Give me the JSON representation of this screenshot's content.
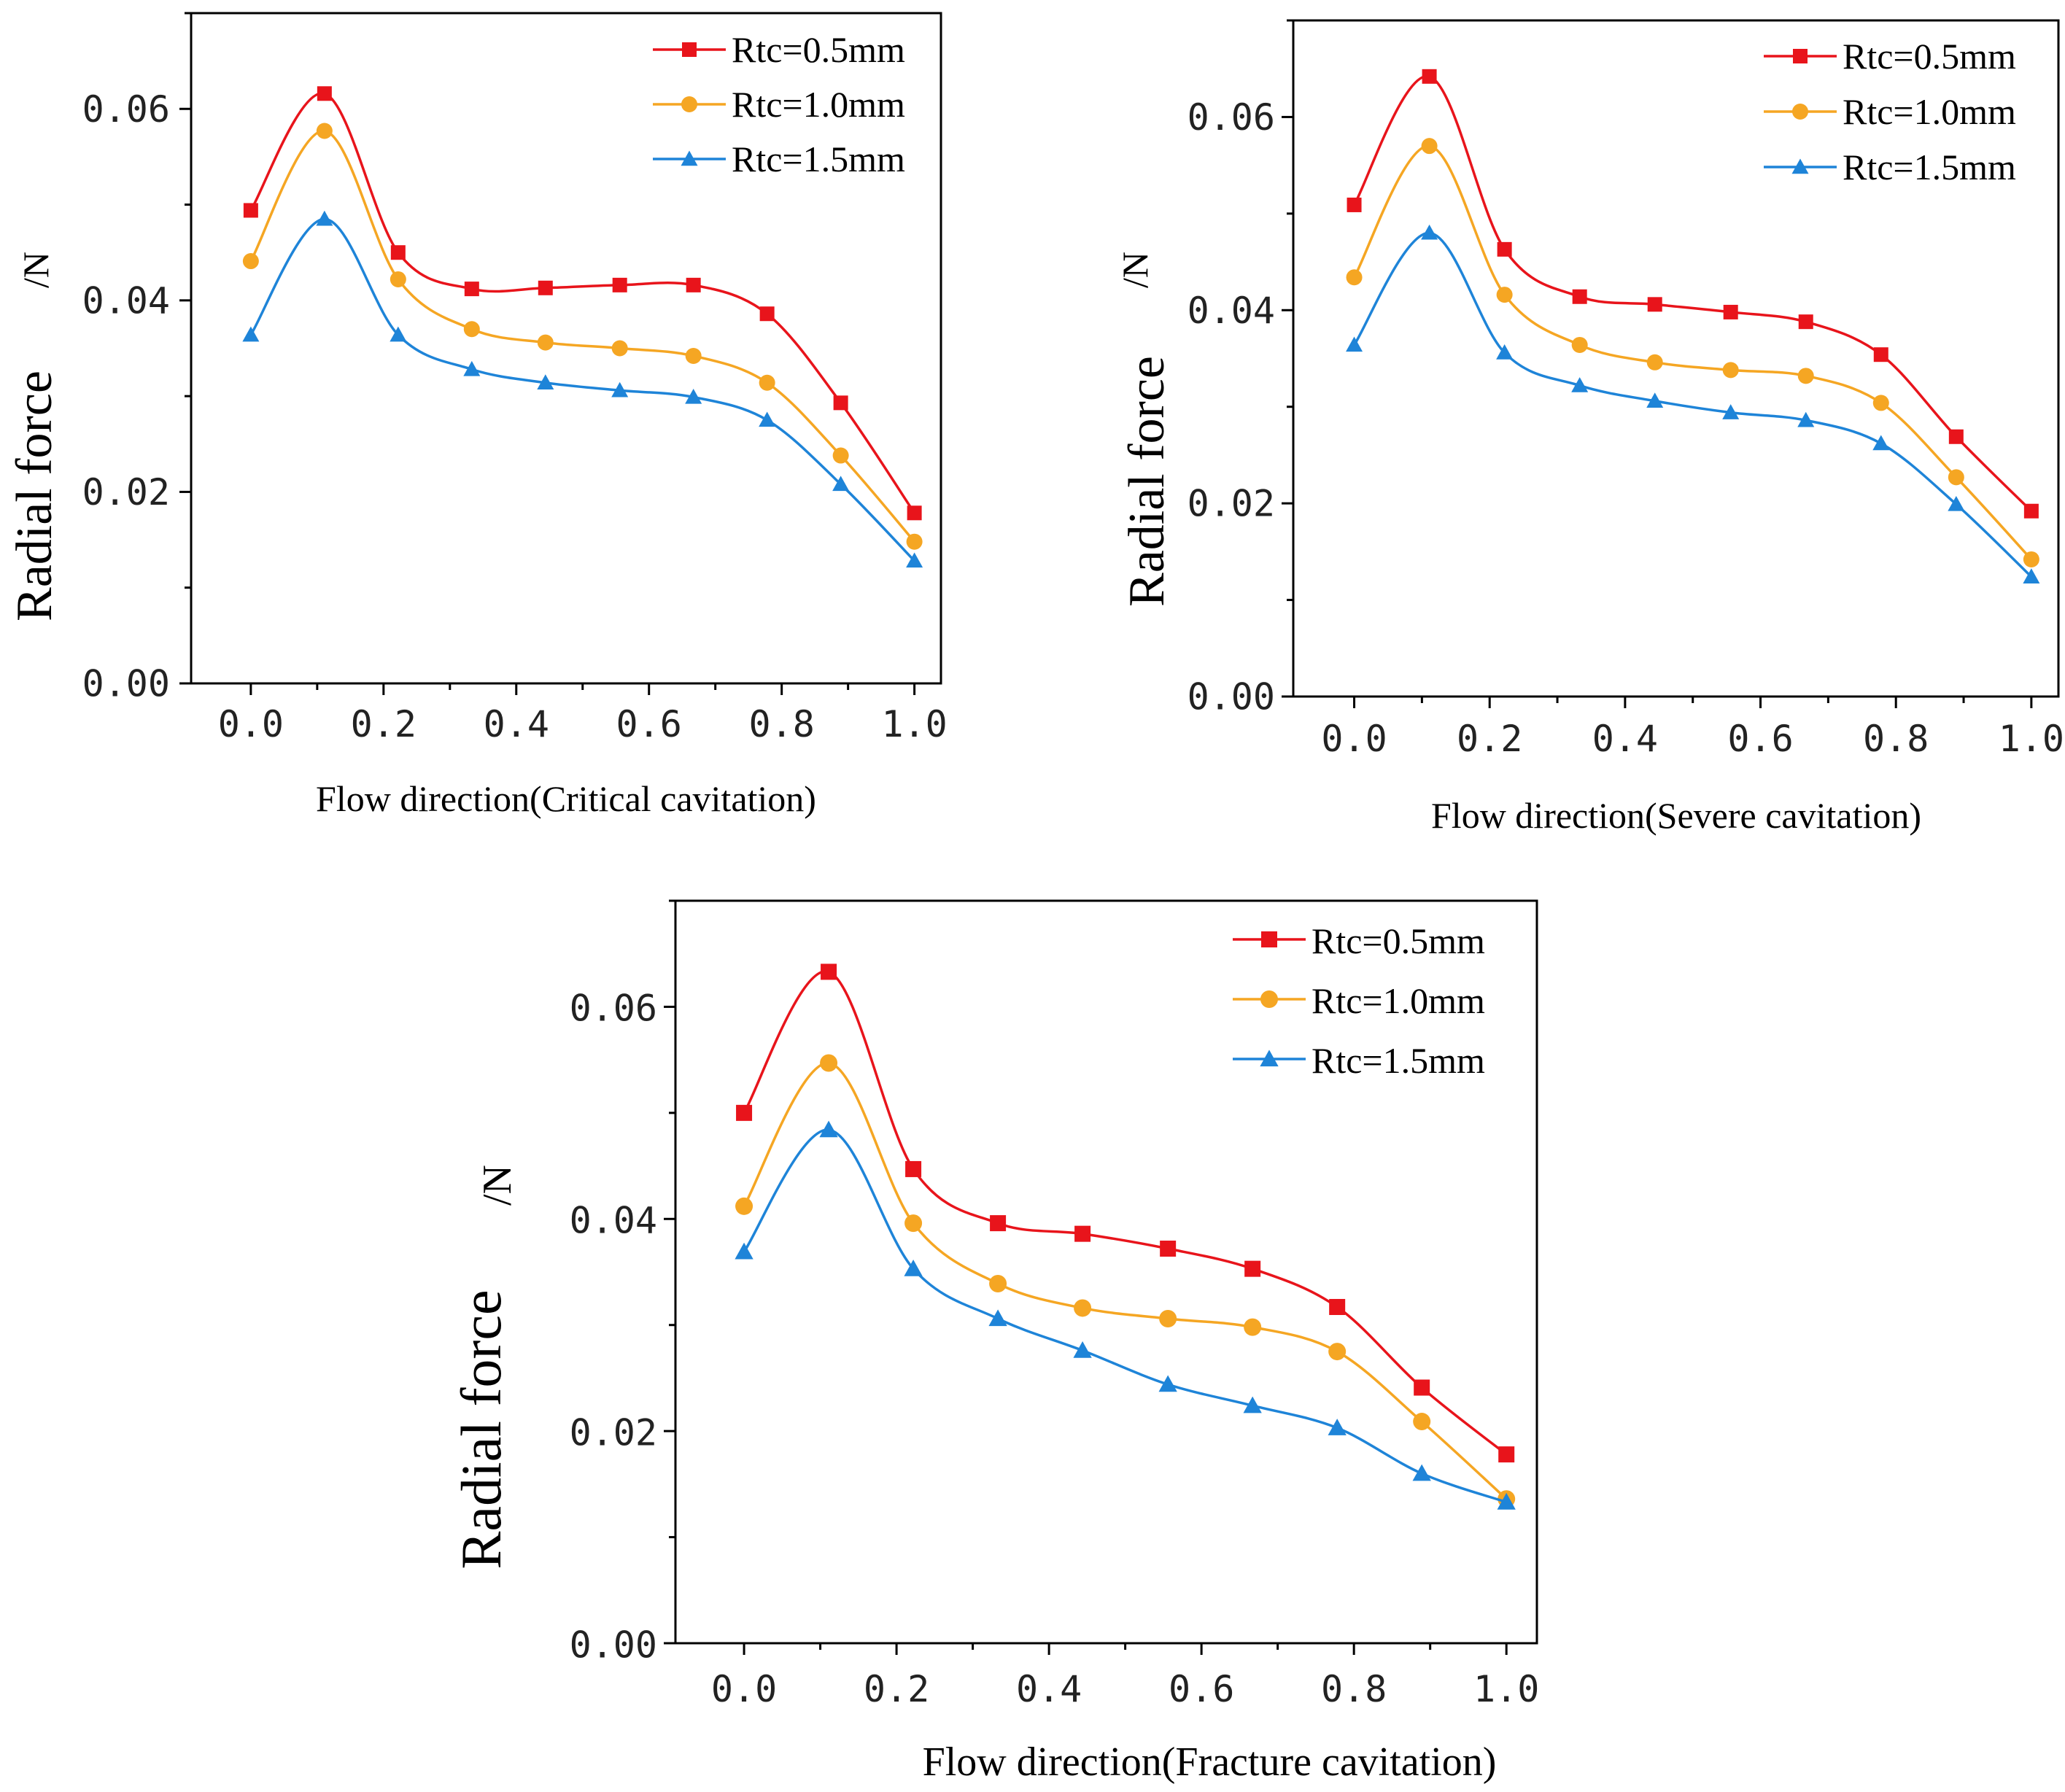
{
  "chart_data": [
    {
      "type": "line",
      "title": "",
      "xlabel": "Flow direction(Critical cavitation)",
      "ylabel": "Radial force",
      "yunit": "/N",
      "xlim": [
        -0.09,
        1.04
      ],
      "ylim": [
        0,
        0.07
      ],
      "x_ticks": [
        "0.0",
        "0.2",
        "0.4",
        "0.6",
        "0.8",
        "1.0"
      ],
      "y_ticks": [
        "0.00",
        "0.02",
        "0.04",
        "0.06"
      ],
      "legend_position": "top-right",
      "x": [
        0.0,
        0.111,
        0.222,
        0.333,
        0.444,
        0.556,
        0.667,
        0.778,
        0.889,
        1.0
      ],
      "series": [
        {
          "name": "Rtc=0.5mm",
          "color": "#e8141b",
          "marker": "square",
          "values": [
            0.0494,
            0.0616,
            0.045,
            0.0412,
            0.0413,
            0.0416,
            0.0416,
            0.0386,
            0.0293,
            0.0178
          ]
        },
        {
          "name": "Rtc=1.0mm",
          "color": "#f5a623",
          "marker": "circle",
          "values": [
            0.0441,
            0.0577,
            0.0422,
            0.037,
            0.0356,
            0.035,
            0.0342,
            0.0314,
            0.0238,
            0.0148
          ]
        },
        {
          "name": "Rtc=1.5mm",
          "color": "#1e84d8",
          "marker": "triangle",
          "values": [
            0.0364,
            0.0485,
            0.0364,
            0.0328,
            0.0314,
            0.0306,
            0.0299,
            0.0275,
            0.0208,
            0.0128
          ]
        }
      ]
    },
    {
      "type": "line",
      "title": "",
      "xlabel": "Flow direction(Severe cavitation)",
      "ylabel": "Radial force",
      "yunit": "/N",
      "xlim": [
        -0.09,
        1.04
      ],
      "ylim": [
        0,
        0.07
      ],
      "x_ticks": [
        "0.0",
        "0.2",
        "0.4",
        "0.6",
        "0.8",
        "1.0"
      ],
      "y_ticks": [
        "0.00",
        "0.02",
        "0.04",
        "0.06"
      ],
      "legend_position": "top-right",
      "x": [
        0.0,
        0.111,
        0.222,
        0.333,
        0.444,
        0.556,
        0.667,
        0.778,
        0.889,
        1.0
      ],
      "series": [
        {
          "name": "Rtc=0.5mm",
          "color": "#e8141b",
          "marker": "square",
          "values": [
            0.0509,
            0.0642,
            0.0463,
            0.0414,
            0.0406,
            0.0398,
            0.0388,
            0.0354,
            0.0269,
            0.0192
          ]
        },
        {
          "name": "Rtc=1.0mm",
          "color": "#f5a623",
          "marker": "circle",
          "values": [
            0.0434,
            0.057,
            0.0416,
            0.0364,
            0.0346,
            0.0338,
            0.0332,
            0.0304,
            0.0227,
            0.0142
          ]
        },
        {
          "name": "Rtc=1.5mm",
          "color": "#1e84d8",
          "marker": "triangle",
          "values": [
            0.0364,
            0.048,
            0.0356,
            0.0322,
            0.0306,
            0.0294,
            0.0286,
            0.0262,
            0.0199,
            0.0124
          ]
        }
      ]
    },
    {
      "type": "line",
      "title": "",
      "xlabel": "Flow direction(Fracture cavitation)",
      "ylabel": "Radial force",
      "yunit": "/N",
      "xlim": [
        -0.09,
        1.04
      ],
      "ylim": [
        0,
        0.07
      ],
      "x_ticks": [
        "0.0",
        "0.2",
        "0.4",
        "0.6",
        "0.8",
        "1.0"
      ],
      "y_ticks": [
        "0.00",
        "0.02",
        "0.04",
        "0.06"
      ],
      "legend_position": "top-right",
      "x": [
        0.0,
        0.111,
        0.222,
        0.333,
        0.444,
        0.556,
        0.667,
        0.778,
        0.889,
        1.0
      ],
      "series": [
        {
          "name": "Rtc=0.5mm",
          "color": "#e8141b",
          "marker": "square",
          "values": [
            0.05,
            0.0633,
            0.0447,
            0.0396,
            0.0386,
            0.0372,
            0.0353,
            0.0317,
            0.0241,
            0.0178
          ]
        },
        {
          "name": "Rtc=1.0mm",
          "color": "#f5a623",
          "marker": "circle",
          "values": [
            0.0412,
            0.0547,
            0.0396,
            0.0339,
            0.0316,
            0.0306,
            0.0298,
            0.0275,
            0.0209,
            0.0136
          ]
        },
        {
          "name": "Rtc=1.5mm",
          "color": "#1e84d8",
          "marker": "triangle",
          "values": [
            0.0369,
            0.0484,
            0.0353,
            0.0306,
            0.0276,
            0.0244,
            0.0224,
            0.0203,
            0.016,
            0.0133
          ]
        }
      ]
    }
  ]
}
